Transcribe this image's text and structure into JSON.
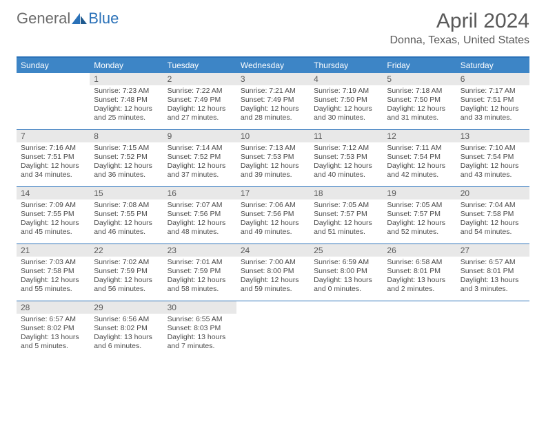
{
  "logo": {
    "general": "General",
    "blue": "Blue"
  },
  "title": "April 2024",
  "location": "Donna, Texas, United States",
  "colors": {
    "header_bar": "#3d85c6",
    "border": "#2a71b8",
    "daynum_bg": "#e8e8e8",
    "text": "#4a4a4a",
    "title_text": "#595959"
  },
  "days_of_week": [
    "Sunday",
    "Monday",
    "Tuesday",
    "Wednesday",
    "Thursday",
    "Friday",
    "Saturday"
  ],
  "weeks": [
    [
      {
        "n": "",
        "sunrise": "",
        "sunset": "",
        "daylight": ""
      },
      {
        "n": "1",
        "sunrise": "Sunrise: 7:23 AM",
        "sunset": "Sunset: 7:48 PM",
        "daylight": "Daylight: 12 hours and 25 minutes."
      },
      {
        "n": "2",
        "sunrise": "Sunrise: 7:22 AM",
        "sunset": "Sunset: 7:49 PM",
        "daylight": "Daylight: 12 hours and 27 minutes."
      },
      {
        "n": "3",
        "sunrise": "Sunrise: 7:21 AM",
        "sunset": "Sunset: 7:49 PM",
        "daylight": "Daylight: 12 hours and 28 minutes."
      },
      {
        "n": "4",
        "sunrise": "Sunrise: 7:19 AM",
        "sunset": "Sunset: 7:50 PM",
        "daylight": "Daylight: 12 hours and 30 minutes."
      },
      {
        "n": "5",
        "sunrise": "Sunrise: 7:18 AM",
        "sunset": "Sunset: 7:50 PM",
        "daylight": "Daylight: 12 hours and 31 minutes."
      },
      {
        "n": "6",
        "sunrise": "Sunrise: 7:17 AM",
        "sunset": "Sunset: 7:51 PM",
        "daylight": "Daylight: 12 hours and 33 minutes."
      }
    ],
    [
      {
        "n": "7",
        "sunrise": "Sunrise: 7:16 AM",
        "sunset": "Sunset: 7:51 PM",
        "daylight": "Daylight: 12 hours and 34 minutes."
      },
      {
        "n": "8",
        "sunrise": "Sunrise: 7:15 AM",
        "sunset": "Sunset: 7:52 PM",
        "daylight": "Daylight: 12 hours and 36 minutes."
      },
      {
        "n": "9",
        "sunrise": "Sunrise: 7:14 AM",
        "sunset": "Sunset: 7:52 PM",
        "daylight": "Daylight: 12 hours and 37 minutes."
      },
      {
        "n": "10",
        "sunrise": "Sunrise: 7:13 AM",
        "sunset": "Sunset: 7:53 PM",
        "daylight": "Daylight: 12 hours and 39 minutes."
      },
      {
        "n": "11",
        "sunrise": "Sunrise: 7:12 AM",
        "sunset": "Sunset: 7:53 PM",
        "daylight": "Daylight: 12 hours and 40 minutes."
      },
      {
        "n": "12",
        "sunrise": "Sunrise: 7:11 AM",
        "sunset": "Sunset: 7:54 PM",
        "daylight": "Daylight: 12 hours and 42 minutes."
      },
      {
        "n": "13",
        "sunrise": "Sunrise: 7:10 AM",
        "sunset": "Sunset: 7:54 PM",
        "daylight": "Daylight: 12 hours and 43 minutes."
      }
    ],
    [
      {
        "n": "14",
        "sunrise": "Sunrise: 7:09 AM",
        "sunset": "Sunset: 7:55 PM",
        "daylight": "Daylight: 12 hours and 45 minutes."
      },
      {
        "n": "15",
        "sunrise": "Sunrise: 7:08 AM",
        "sunset": "Sunset: 7:55 PM",
        "daylight": "Daylight: 12 hours and 46 minutes."
      },
      {
        "n": "16",
        "sunrise": "Sunrise: 7:07 AM",
        "sunset": "Sunset: 7:56 PM",
        "daylight": "Daylight: 12 hours and 48 minutes."
      },
      {
        "n": "17",
        "sunrise": "Sunrise: 7:06 AM",
        "sunset": "Sunset: 7:56 PM",
        "daylight": "Daylight: 12 hours and 49 minutes."
      },
      {
        "n": "18",
        "sunrise": "Sunrise: 7:05 AM",
        "sunset": "Sunset: 7:57 PM",
        "daylight": "Daylight: 12 hours and 51 minutes."
      },
      {
        "n": "19",
        "sunrise": "Sunrise: 7:05 AM",
        "sunset": "Sunset: 7:57 PM",
        "daylight": "Daylight: 12 hours and 52 minutes."
      },
      {
        "n": "20",
        "sunrise": "Sunrise: 7:04 AM",
        "sunset": "Sunset: 7:58 PM",
        "daylight": "Daylight: 12 hours and 54 minutes."
      }
    ],
    [
      {
        "n": "21",
        "sunrise": "Sunrise: 7:03 AM",
        "sunset": "Sunset: 7:58 PM",
        "daylight": "Daylight: 12 hours and 55 minutes."
      },
      {
        "n": "22",
        "sunrise": "Sunrise: 7:02 AM",
        "sunset": "Sunset: 7:59 PM",
        "daylight": "Daylight: 12 hours and 56 minutes."
      },
      {
        "n": "23",
        "sunrise": "Sunrise: 7:01 AM",
        "sunset": "Sunset: 7:59 PM",
        "daylight": "Daylight: 12 hours and 58 minutes."
      },
      {
        "n": "24",
        "sunrise": "Sunrise: 7:00 AM",
        "sunset": "Sunset: 8:00 PM",
        "daylight": "Daylight: 12 hours and 59 minutes."
      },
      {
        "n": "25",
        "sunrise": "Sunrise: 6:59 AM",
        "sunset": "Sunset: 8:00 PM",
        "daylight": "Daylight: 13 hours and 0 minutes."
      },
      {
        "n": "26",
        "sunrise": "Sunrise: 6:58 AM",
        "sunset": "Sunset: 8:01 PM",
        "daylight": "Daylight: 13 hours and 2 minutes."
      },
      {
        "n": "27",
        "sunrise": "Sunrise: 6:57 AM",
        "sunset": "Sunset: 8:01 PM",
        "daylight": "Daylight: 13 hours and 3 minutes."
      }
    ],
    [
      {
        "n": "28",
        "sunrise": "Sunrise: 6:57 AM",
        "sunset": "Sunset: 8:02 PM",
        "daylight": "Daylight: 13 hours and 5 minutes."
      },
      {
        "n": "29",
        "sunrise": "Sunrise: 6:56 AM",
        "sunset": "Sunset: 8:02 PM",
        "daylight": "Daylight: 13 hours and 6 minutes."
      },
      {
        "n": "30",
        "sunrise": "Sunrise: 6:55 AM",
        "sunset": "Sunset: 8:03 PM",
        "daylight": "Daylight: 13 hours and 7 minutes."
      },
      {
        "n": "",
        "sunrise": "",
        "sunset": "",
        "daylight": ""
      },
      {
        "n": "",
        "sunrise": "",
        "sunset": "",
        "daylight": ""
      },
      {
        "n": "",
        "sunrise": "",
        "sunset": "",
        "daylight": ""
      },
      {
        "n": "",
        "sunrise": "",
        "sunset": "",
        "daylight": ""
      }
    ]
  ]
}
